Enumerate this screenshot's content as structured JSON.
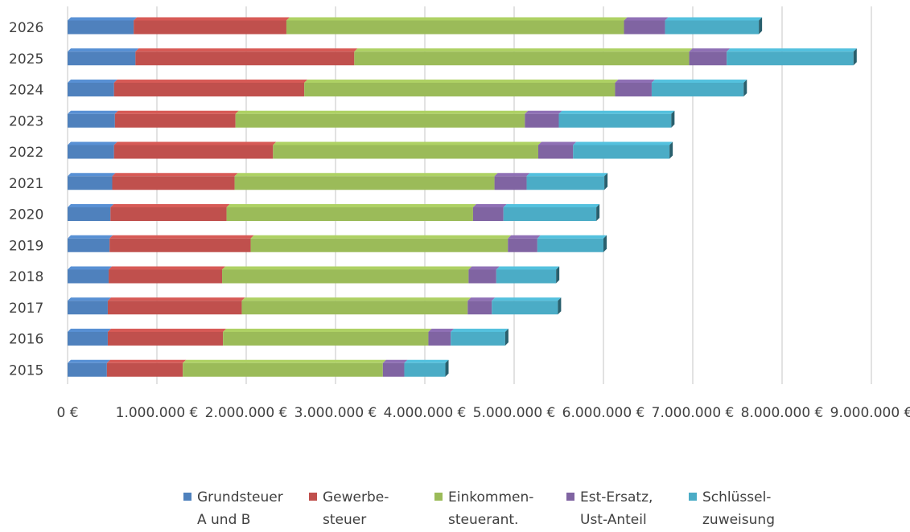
{
  "chart_data": {
    "type": "bar",
    "orientation": "horizontal",
    "stacked": true,
    "title": "",
    "xlabel": "",
    "ylabel": "",
    "xlim": [
      0,
      9000000
    ],
    "grid": true,
    "legend_position": "bottom",
    "x_tick_labels": [
      "0 €",
      "1.000.000 €",
      "2.000.000 €",
      "3.000.000 €",
      "4.000.000 €",
      "5.000.000 €",
      "6.000.000 €",
      "7.000.000 €",
      "8.000.000 €",
      "9.000.000 €"
    ],
    "categories": [
      "2015",
      "2016",
      "2017",
      "2018",
      "2019",
      "2020",
      "2021",
      "2022",
      "2023",
      "2024",
      "2025",
      "2026"
    ],
    "series": [
      {
        "name": "Grundsteuer A und B",
        "label_lines": [
          "Grundsteuer",
          "A und B"
        ],
        "color": "#4F81BD",
        "values": [
          440000,
          450000,
          450000,
          460000,
          470000,
          480000,
          500000,
          520000,
          530000,
          520000,
          760000,
          740000
        ]
      },
      {
        "name": "Gewerbesteuer",
        "label_lines": [
          "Gewerbe-",
          "steuer"
        ],
        "color": "#C0504D",
        "values": [
          850000,
          1290000,
          1500000,
          1270000,
          1580000,
          1300000,
          1370000,
          1780000,
          1350000,
          2130000,
          2450000,
          1710000
        ]
      },
      {
        "name": "Einkommensteueranteil",
        "label_lines": [
          "Einkommen-",
          "steuerant."
        ],
        "color": "#9BBB59",
        "values": [
          2240000,
          2300000,
          2530000,
          2760000,
          2880000,
          2760000,
          2910000,
          2970000,
          3240000,
          3480000,
          3750000,
          3780000
        ]
      },
      {
        "name": "Est-Ersatz, Ust-Anteil",
        "label_lines": [
          "Est-Ersatz,",
          "Ust-Anteil"
        ],
        "color": "#8064A2",
        "values": [
          240000,
          250000,
          270000,
          310000,
          330000,
          340000,
          360000,
          390000,
          380000,
          410000,
          420000,
          460000
        ]
      },
      {
        "name": "Schlüsselzuweisung",
        "label_lines": [
          "Schlüssel-",
          "zuweisung"
        ],
        "color": "#4BACC6",
        "values": [
          460000,
          610000,
          740000,
          670000,
          740000,
          1040000,
          870000,
          1080000,
          1260000,
          1030000,
          1420000,
          1050000
        ]
      }
    ]
  }
}
